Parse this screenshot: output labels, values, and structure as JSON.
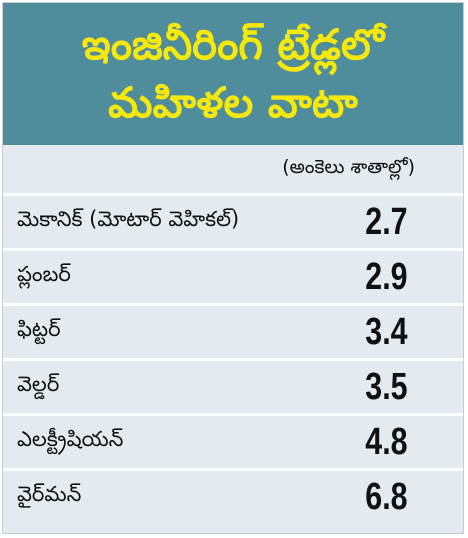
{
  "header": {
    "title_lines": [
      "ఇంజినీరింగ్ ట్రేడ్లలో",
      "మహిళల వాటా"
    ]
  },
  "table": {
    "unit": "(అంకెలు శాతాల్లో)",
    "rows": [
      [
        "మెకానిక్ (మోటార్ వెహికల్)",
        2.7
      ],
      [
        "ప్లంబర్",
        2.9
      ],
      [
        "ఫిట్టర్",
        3.4
      ],
      [
        "వెల్డర్",
        3.5
      ],
      [
        "ఎలక్ట్రీషియన్",
        4.8
      ],
      [
        "వైర్‌మన్",
        6.8
      ]
    ]
  }
}
